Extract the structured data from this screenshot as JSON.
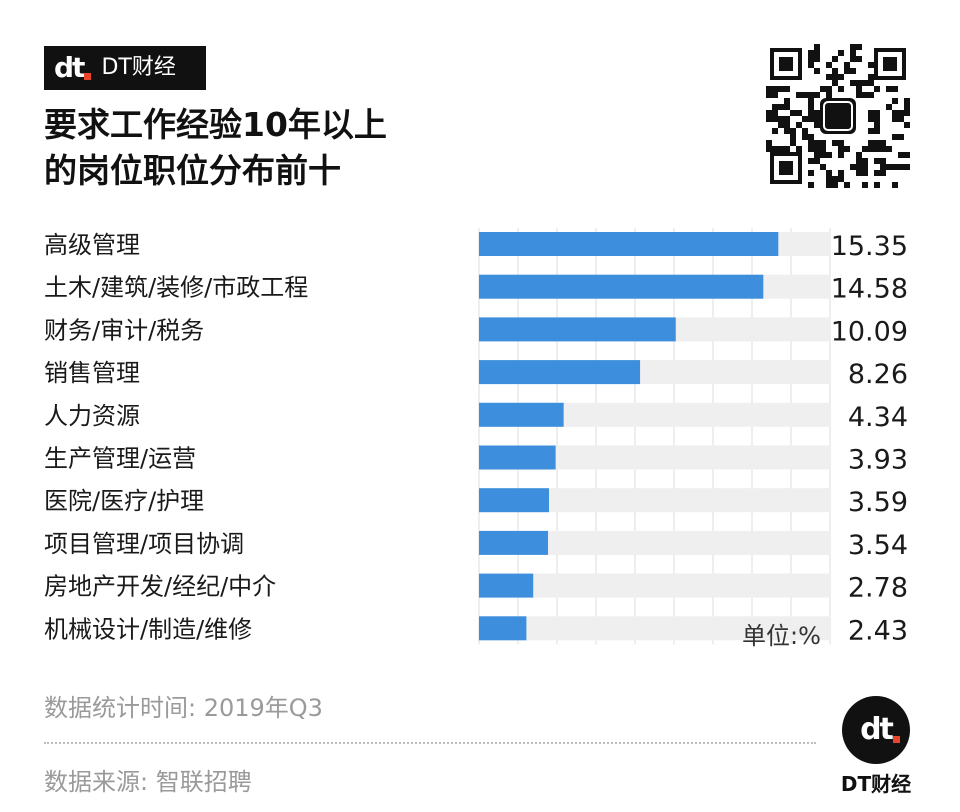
{
  "brand": {
    "logo_mark": "dt",
    "name": "DT财经"
  },
  "title": "要求工作经验10年以上的岗位职位分布前十",
  "chart_data": {
    "type": "bar",
    "orientation": "horizontal",
    "title": "要求工作经验10年以上的岗位职位分布前十",
    "categories": [
      "高级管理",
      "土木/建筑/装修/市政工程",
      "财务/审计/税务",
      "销售管理",
      "人力资源",
      "生产管理/运营",
      "医院/医疗/护理",
      "项目管理/项目协调",
      "房地产开发/经纪/中介",
      "机械设计/制造/维修"
    ],
    "values": [
      15.35,
      14.58,
      10.09,
      8.26,
      4.34,
      3.93,
      3.59,
      3.54,
      2.78,
      2.43
    ],
    "value_labels": [
      "15.35",
      "14.58",
      "10.09",
      "8.26",
      "4.34",
      "3.93",
      "3.59",
      "3.54",
      "2.78",
      "2.43"
    ],
    "xlim": [
      0,
      18
    ],
    "unit": "单位:%",
    "bar_color": "#3d8fdd",
    "track_color": "#efefef",
    "grid": true,
    "legend": "none"
  },
  "footer": {
    "time_note": "数据统计时间: 2019年Q3",
    "source_note": "数据来源: 智联招聘"
  }
}
